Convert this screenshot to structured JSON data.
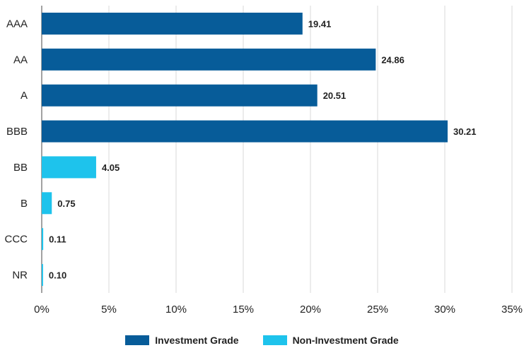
{
  "colors": {
    "investment": "#075c99",
    "non_investment": "#1ec3ec",
    "grid": "#d9d9d9",
    "axis": "#444444"
  },
  "chart_data": {
    "type": "bar",
    "orientation": "horizontal",
    "categories": [
      "AAA",
      "AA",
      "A",
      "BBB",
      "BB",
      "B",
      "CCC",
      "NR"
    ],
    "values": [
      19.41,
      24.86,
      20.51,
      30.21,
      4.05,
      0.75,
      0.11,
      0.1
    ],
    "value_labels": [
      "19.41",
      "24.86",
      "20.51",
      "30.21",
      "4.05",
      "0.75",
      "0.11",
      "0.10"
    ],
    "groups": [
      "investment",
      "investment",
      "investment",
      "investment",
      "non_investment",
      "non_investment",
      "non_investment",
      "non_investment"
    ],
    "xlim": [
      0,
      35
    ],
    "xticks": [
      0,
      5,
      10,
      15,
      20,
      25,
      30,
      35
    ],
    "xtick_labels": [
      "0%",
      "5%",
      "10%",
      "15%",
      "20%",
      "25%",
      "30%",
      "35%"
    ],
    "grid": "vertical",
    "legend_position": "bottom-center",
    "legend": [
      {
        "key": "investment",
        "label": "Investment Grade"
      },
      {
        "key": "non_investment",
        "label": "Non-Investment Grade"
      }
    ]
  }
}
